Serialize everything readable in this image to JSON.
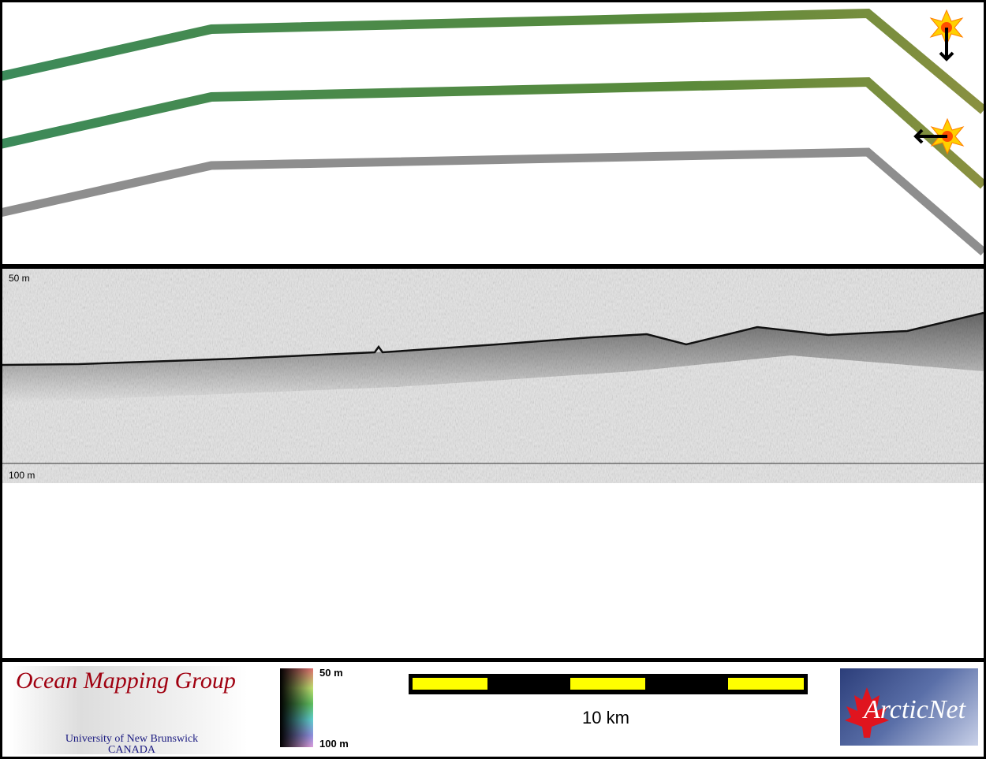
{
  "sonar": {
    "depth_top": "50 m",
    "depth_bottom": "100 m"
  },
  "footer": {
    "omg_title": "Ocean Mapping Group",
    "omg_sub1": "University of New Brunswick",
    "omg_sub2": "CANADA",
    "colorbar_top": "50 m",
    "colorbar_bottom": "100 m",
    "scale_label": "10 km",
    "arcticnet": "ArcticNet"
  },
  "icons": [
    "sun-light-icon",
    "arrow-down-icon",
    "arrow-left-icon"
  ],
  "colors": {
    "track_green": "#4f8a4a",
    "track_gray": "#8a8a8a",
    "scale_yellow": "#ffff00",
    "omg_red": "#a00010"
  }
}
